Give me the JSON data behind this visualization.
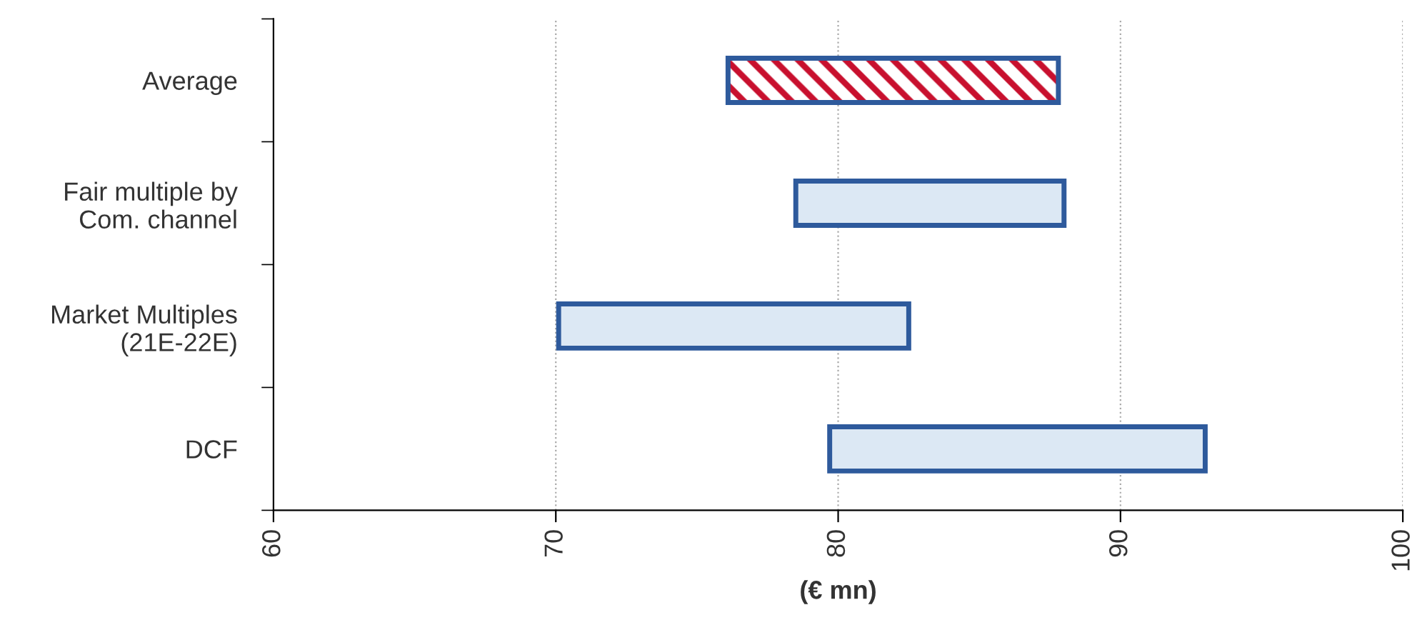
{
  "chart_data": {
    "type": "bar",
    "orientation": "horizontal",
    "xlabel": "(€ mn)",
    "categories": [
      "Average",
      "Fair multiple by\nCom. channel",
      "Market Multiples\n(21E-22E)",
      "DCF"
    ],
    "base": [
      76.1,
      78.5,
      70.1,
      79.7
    ],
    "values": [
      11.7,
      9.5,
      12.4,
      13.3
    ],
    "colors": [
      "#c8102e",
      "#dce8f4",
      "#dce8f4",
      "#dce8f4"
    ],
    "xlim": [
      60,
      100
    ],
    "xticks": [
      60,
      70,
      80,
      90,
      100
    ],
    "grid": "x"
  }
}
